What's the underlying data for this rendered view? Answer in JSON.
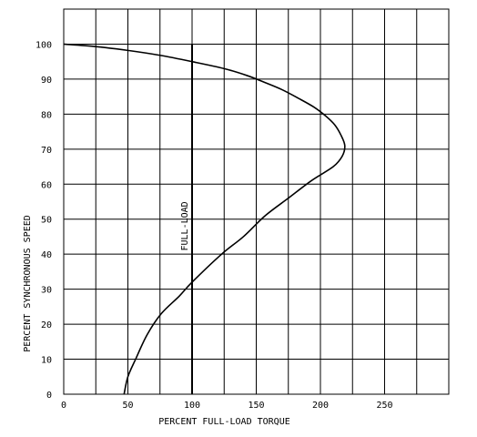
{
  "chart_data": {
    "type": "line",
    "title": "",
    "xlabel": "PERCENT FULL-LOAD TORQUE",
    "ylabel": "PERCENT SYNCHRONOUS SPEED",
    "xlim": [
      0,
      300
    ],
    "ylim": [
      0,
      110
    ],
    "x_ticks": [
      "0",
      "50",
      "100",
      "150",
      "200",
      "250"
    ],
    "y_ticks": [
      "0",
      "10",
      "20",
      "30",
      "40",
      "50",
      "60",
      "70",
      "80",
      "90",
      "100"
    ],
    "grid": true,
    "series": [
      {
        "points": [
          [
            47,
            0
          ],
          [
            50,
            5
          ],
          [
            56,
            10
          ],
          [
            65,
            17
          ],
          [
            76,
            23
          ],
          [
            90,
            28
          ],
          [
            100,
            32
          ],
          [
            123,
            40
          ],
          [
            140,
            45
          ],
          [
            157,
            51
          ],
          [
            175,
            56
          ],
          [
            193,
            61
          ],
          [
            210,
            65
          ],
          [
            217,
            68
          ],
          [
            219,
            71
          ],
          [
            216,
            74
          ],
          [
            211,
            77
          ],
          [
            204,
            79.5
          ],
          [
            195,
            82
          ],
          [
            183,
            84.5
          ],
          [
            170,
            87
          ],
          [
            157,
            89
          ],
          [
            143,
            91
          ],
          [
            125,
            93
          ],
          [
            100,
            95
          ],
          [
            75,
            96.8
          ],
          [
            50,
            98.2
          ],
          [
            25,
            99.3
          ],
          [
            0,
            100
          ]
        ]
      }
    ],
    "annotations": [
      {
        "text": "FULL-LOAD",
        "x": 100,
        "y_from": 0,
        "y_to": 100
      }
    ]
  }
}
